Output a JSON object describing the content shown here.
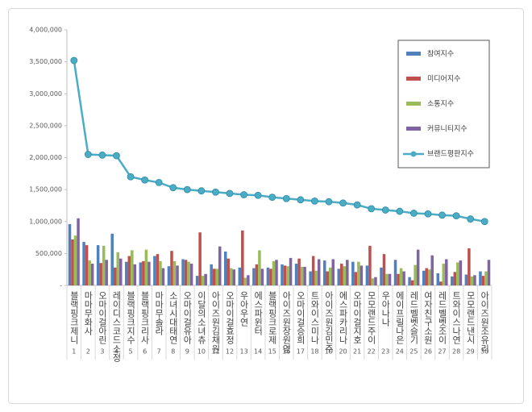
{
  "chart_data": {
    "type": "bar_line",
    "categories": [
      "블랙핑크제니",
      "마마무화사",
      "오마이걸아린",
      "레이디스코드소정",
      "블랙핑크지수",
      "블랙핑크리사",
      "마마무솔라",
      "소녀시대태연",
      "오마이걸유아",
      "이달의소녀츄",
      "아이즈원김채원",
      "오마이걸효정",
      "우아우연",
      "에스파윈터",
      "블랙핑크로제",
      "아이즈원장원영",
      "오마이걸승희",
      "트와이스미나",
      "아이즈원김민주",
      "에스파카리나",
      "오마이걸지호",
      "모모랜드주이",
      "우아나나",
      "에이프릴나은",
      "레드벨벳슬기",
      "여자친구소원",
      "레드벨벳조이",
      "트와이스나연",
      "모모랜드낸시",
      "아이즈원조유리"
    ],
    "ranks": [
      1,
      2,
      3,
      4,
      5,
      6,
      7,
      8,
      9,
      10,
      11,
      12,
      13,
      14,
      15,
      16,
      17,
      18,
      19,
      20,
      21,
      22,
      23,
      24,
      25,
      26,
      27,
      28,
      29,
      30
    ],
    "series": [
      {
        "name": "참여지수",
        "color": "#4f81bd",
        "kind": "bar",
        "values": [
          960000,
          680000,
          630000,
          810000,
          370000,
          360000,
          460000,
          300000,
          410000,
          150000,
          330000,
          530000,
          280000,
          270000,
          280000,
          330000,
          340000,
          220000,
          390000,
          260000,
          370000,
          310000,
          280000,
          400000,
          130000,
          230000,
          190000,
          140000,
          170000,
          220000
        ]
      },
      {
        "name": "미디어지수",
        "color": "#c0504d",
        "kind": "bar",
        "values": [
          720000,
          630000,
          350000,
          280000,
          460000,
          380000,
          490000,
          540000,
          400000,
          830000,
          260000,
          420000,
          860000,
          330000,
          260000,
          310000,
          420000,
          460000,
          220000,
          340000,
          210000,
          620000,
          490000,
          180000,
          80000,
          270000,
          60000,
          210000,
          580000,
          150000
        ]
      },
      {
        "name": "소통지수",
        "color": "#9bbb59",
        "kind": "bar",
        "values": [
          780000,
          390000,
          620000,
          520000,
          550000,
          560000,
          380000,
          380000,
          370000,
          150000,
          260000,
          270000,
          120000,
          550000,
          380000,
          300000,
          290000,
          230000,
          280000,
          300000,
          370000,
          110000,
          180000,
          270000,
          320000,
          250000,
          340000,
          360000,
          140000,
          220000
        ]
      },
      {
        "name": "커뮤니티지수",
        "color": "#8064a2",
        "kind": "bar",
        "values": [
          1050000,
          340000,
          400000,
          420000,
          330000,
          370000,
          270000,
          310000,
          340000,
          180000,
          610000,
          250000,
          160000,
          260000,
          400000,
          430000,
          290000,
          410000,
          410000,
          400000,
          310000,
          130000,
          180000,
          220000,
          560000,
          470000,
          410000,
          390000,
          160000,
          400000
        ]
      },
      {
        "name": "브랜드평판지수",
        "color": "#4bacc6",
        "kind": "line",
        "values": [
          3520000,
          2050000,
          2040000,
          2030000,
          1700000,
          1650000,
          1610000,
          1530000,
          1500000,
          1480000,
          1460000,
          1440000,
          1420000,
          1410000,
          1380000,
          1360000,
          1340000,
          1320000,
          1310000,
          1290000,
          1260000,
          1200000,
          1180000,
          1160000,
          1130000,
          1120000,
          1100000,
          1090000,
          1040000,
          1000000
        ]
      }
    ],
    "ylim": [
      0,
      4000000
    ],
    "yticks": [
      {
        "value": 0,
        "label": "-"
      },
      {
        "value": 500000,
        "label": "500,000"
      },
      {
        "value": 1000000,
        "label": "1,000,000"
      },
      {
        "value": 1500000,
        "label": "1,500,000"
      },
      {
        "value": 2000000,
        "label": "2,000,000"
      },
      {
        "value": 2500000,
        "label": "2,500,000"
      },
      {
        "value": 3000000,
        "label": "3,000,000"
      },
      {
        "value": 3500000,
        "label": "3,500,000"
      },
      {
        "value": 4000000,
        "label": "4,000,000"
      }
    ],
    "grid": false,
    "legend": "upper right"
  }
}
